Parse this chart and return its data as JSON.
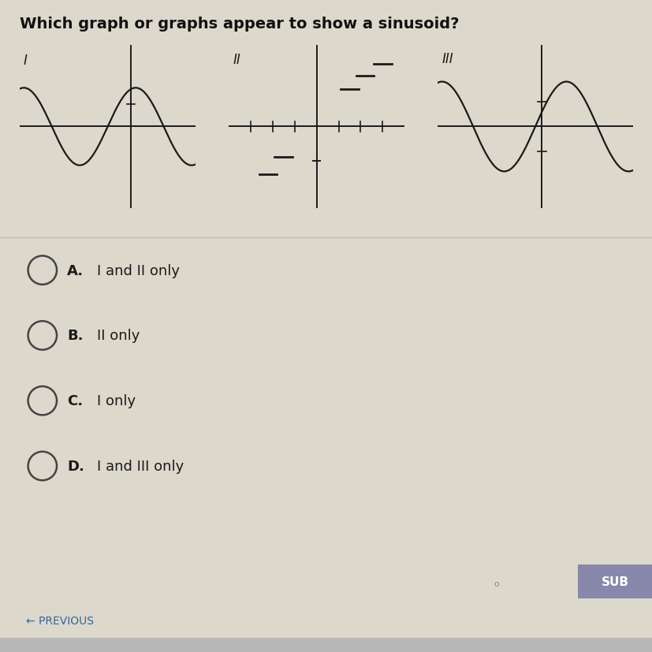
{
  "title": "Which graph or graphs appear to show a sinusoid?",
  "title_fontsize": 14,
  "title_fontweight": "bold",
  "background_color": "#ddd8cc",
  "options": [
    {
      "label": "A.",
      "text": "I and II only"
    },
    {
      "label": "B.",
      "text": "II only"
    },
    {
      "label": "C.",
      "text": "I only"
    },
    {
      "label": "D.",
      "text": "I and III only"
    }
  ],
  "line_color": "#1a1a1a",
  "axis_color": "#1a1a1a",
  "divider_color": "#bbbbbb",
  "sub_button_color": "#8888aa",
  "previous_color": "#336699",
  "graph1_roman": "I",
  "graph2_roman": "II",
  "graph3_roman": "III"
}
